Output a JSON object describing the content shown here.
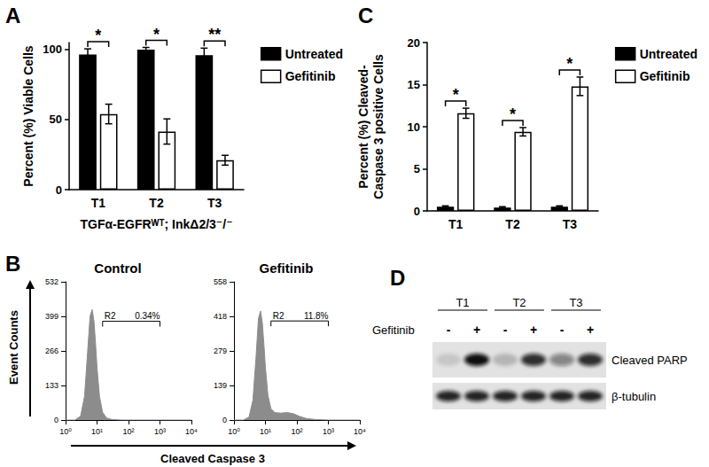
{
  "chart_data": [
    {
      "panel": "A",
      "type": "bar",
      "categories": [
        "T1",
        "T2",
        "T3"
      ],
      "series": [
        {
          "name": "Untreated",
          "color": "#000000",
          "values": [
            96.5,
            100,
            96
          ],
          "errors": [
            4,
            1.5,
            5
          ]
        },
        {
          "name": "Gefitinib",
          "color": "#ffffff",
          "values": [
            54,
            41.5,
            21
          ],
          "errors": [
            7,
            9,
            3.5
          ]
        }
      ],
      "significance": [
        "*",
        "*",
        "**"
      ],
      "ylabel": "Percent (%) Viable Cells",
      "xlabel": "TGFα-EGFRᵂᵀ; InkΔ2/3⁻/⁻",
      "ylim": [
        0,
        105
      ],
      "yticks": [
        0,
        50,
        100
      ],
      "legend": "right",
      "grid": false
    },
    {
      "panel": "B",
      "type": "area",
      "title": "Control",
      "color": "#8c8c8c",
      "log": "x",
      "x": [
        1,
        2,
        3,
        4,
        5,
        6,
        7,
        8,
        9,
        10,
        12,
        15,
        20,
        30,
        60,
        10000
      ],
      "values": [
        0,
        0,
        15,
        90,
        260,
        400,
        425,
        380,
        290,
        200,
        90,
        30,
        8,
        2,
        0,
        0
      ],
      "xlim": [
        1,
        10000
      ],
      "xticks": [
        {
          "value": 1,
          "label": "10⁰"
        },
        {
          "value": 10,
          "label": "10¹"
        },
        {
          "value": 100,
          "label": "10²"
        },
        {
          "value": 1000,
          "label": "10³"
        },
        {
          "value": 10000,
          "label": "10⁴"
        }
      ],
      "ylim": [
        0,
        532
      ],
      "yticks": [
        0,
        133,
        266,
        399,
        532
      ],
      "gate": {
        "label": "R2",
        "range": [
          15,
          1000
        ],
        "level": 380,
        "text": "0.34%"
      }
    },
    {
      "panel": "B",
      "type": "area",
      "title": "Gefitinib",
      "color": "#8c8c8c",
      "log": "x",
      "x": [
        1,
        2,
        3,
        4,
        5,
        6,
        7,
        8,
        9,
        10,
        12,
        15,
        20,
        30,
        50,
        80,
        120,
        200,
        400,
        1000,
        10000
      ],
      "values": [
        0,
        0,
        12,
        80,
        250,
        410,
        440,
        390,
        300,
        210,
        100,
        45,
        30,
        28,
        30,
        25,
        15,
        6,
        2,
        0,
        0
      ],
      "xlim": [
        1,
        10000
      ],
      "xticks": [
        {
          "value": 1,
          "label": "10⁰"
        },
        {
          "value": 10,
          "label": "10¹"
        },
        {
          "value": 100,
          "label": "10²"
        },
        {
          "value": 1000,
          "label": "10³"
        },
        {
          "value": 10000,
          "label": "10⁴"
        }
      ],
      "ylim": [
        0,
        558
      ],
      "yticks": [
        0,
        139,
        279,
        418,
        558
      ],
      "gate": {
        "label": "R2",
        "range": [
          15,
          1000
        ],
        "level": 400,
        "text": "11.8%"
      }
    },
    {
      "panel": "C",
      "type": "bar",
      "categories": [
        "T1",
        "T2",
        "T3"
      ],
      "series": [
        {
          "name": "Untreated",
          "color": "#000000",
          "values": [
            0.5,
            0.4,
            0.5
          ],
          "errors": [
            0.1,
            0.1,
            0.1
          ]
        },
        {
          "name": "Gefitinib",
          "color": "#ffffff",
          "values": [
            11.6,
            9.4,
            14.8
          ],
          "errors": [
            0.6,
            0.5,
            1.1
          ]
        }
      ],
      "significance": [
        "*",
        "*",
        "*"
      ],
      "ylabel": "Percent (%) Cleaved-\nCaspase 3 positive Cells",
      "ylim": [
        0,
        20
      ],
      "yticks": [
        0,
        5,
        10,
        15,
        20
      ],
      "legend": "right",
      "grid": false
    }
  ],
  "panel_B": {
    "xlabel": "Cleaved Caspase 3",
    "ylabel": "Event Counts"
  },
  "blot": {
    "panel": "D",
    "groups": [
      "T1",
      "T2",
      "T3"
    ],
    "treatment": "Gefitinib",
    "lanes": [
      "-",
      "+",
      "-",
      "+",
      "-",
      "+"
    ],
    "bands": [
      {
        "name": "Cleaved PARP",
        "intensity": [
          0.12,
          1,
          0.2,
          0.85,
          0.45,
          0.85
        ]
      },
      {
        "name": "β-tubulin",
        "intensity": [
          0.9,
          0.9,
          0.9,
          0.9,
          0.9,
          0.9
        ]
      }
    ]
  }
}
